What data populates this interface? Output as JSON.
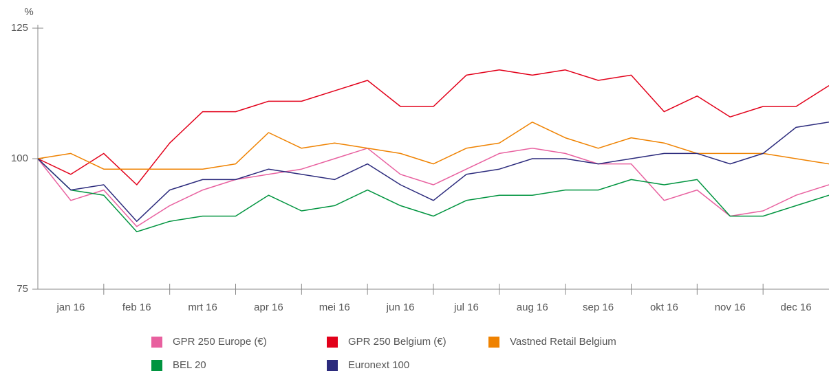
{
  "chart_data": {
    "type": "line",
    "y_label": "%",
    "x": [
      0,
      0.5,
      1,
      1.5,
      2,
      2.5,
      3,
      3.5,
      4,
      4.5,
      5,
      5.5,
      6,
      6.5,
      7,
      7.5,
      8,
      8.5,
      9,
      9.5,
      10,
      10.5,
      11,
      11.5,
      12
    ],
    "xlim": [
      0,
      12
    ],
    "xticks": [
      {
        "value": 0.5,
        "label": "jan 16"
      },
      {
        "value": 1.5,
        "label": "feb 16"
      },
      {
        "value": 2.5,
        "label": "mrt 16"
      },
      {
        "value": 3.5,
        "label": "apr 16"
      },
      {
        "value": 4.5,
        "label": "mei 16"
      },
      {
        "value": 5.5,
        "label": "jun 16"
      },
      {
        "value": 6.5,
        "label": "jul 16"
      },
      {
        "value": 7.5,
        "label": "aug 16"
      },
      {
        "value": 8.5,
        "label": "sep 16"
      },
      {
        "value": 9.5,
        "label": "okt 16"
      },
      {
        "value": 10.5,
        "label": "nov 16"
      },
      {
        "value": 11.5,
        "label": "dec 16"
      }
    ],
    "ylim": [
      75,
      125
    ],
    "yticks": [
      75,
      100,
      125
    ],
    "series": [
      {
        "name": "GPR 250 Europe (€)",
        "color": "#e8609f",
        "values": [
          100,
          92,
          94,
          87,
          91,
          94,
          96,
          97,
          98,
          100,
          102,
          97,
          95,
          98,
          101,
          102,
          101,
          99,
          99,
          92,
          94,
          89,
          90,
          93,
          95
        ]
      },
      {
        "name": "GPR 250 Belgium (€)",
        "color": "#e2001a",
        "values": [
          100,
          97,
          101,
          95,
          103,
          109,
          109,
          111,
          111,
          113,
          115,
          110,
          110,
          116,
          117,
          116,
          117,
          115,
          116,
          109,
          112,
          108,
          110,
          110,
          114
        ]
      },
      {
        "name": "Vastned Retail Belgium",
        "color": "#ef8200",
        "values": [
          100,
          101,
          98,
          98,
          98,
          98,
          99,
          105,
          102,
          103,
          102,
          101,
          99,
          102,
          103,
          107,
          104,
          102,
          104,
          103,
          101,
          101,
          101,
          100,
          99
        ]
      },
      {
        "name": "BEL 20",
        "color": "#00943f",
        "values": [
          100,
          94,
          93,
          86,
          88,
          89,
          89,
          93,
          90,
          91,
          94,
          91,
          89,
          92,
          93,
          93,
          94,
          94,
          96,
          95,
          96,
          89,
          89,
          91,
          93
        ]
      },
      {
        "name": "Euronext 100",
        "color": "#2b2a7c",
        "values": [
          100,
          94,
          95,
          88,
          94,
          96,
          96,
          98,
          97,
          96,
          99,
          95,
          92,
          97,
          98,
          100,
          100,
          99,
          100,
          101,
          101,
          99,
          101,
          106,
          107
        ]
      }
    ]
  }
}
